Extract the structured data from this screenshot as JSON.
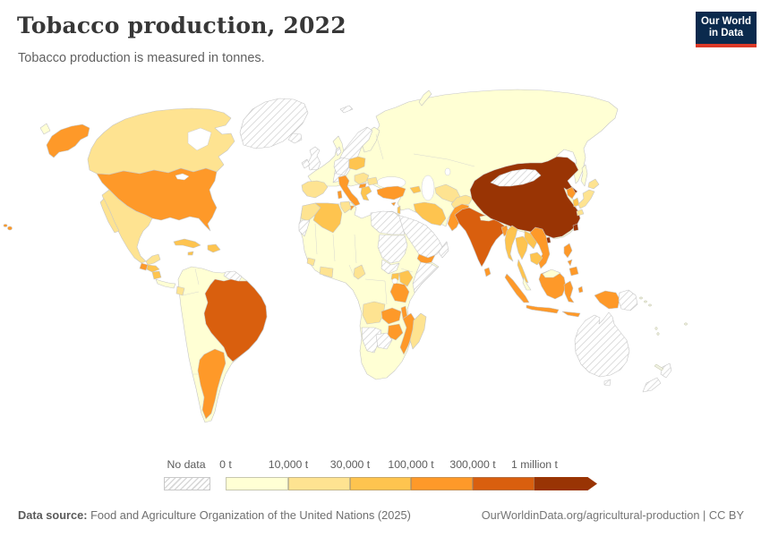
{
  "header": {
    "title": "Tobacco production, 2022",
    "subtitle": "Tobacco production is measured in tonnes.",
    "logo": {
      "line1": "Our World",
      "line2": "in Data",
      "bg": "#0b2a4d",
      "underline": "#dc3927"
    }
  },
  "legend": {
    "no_data_label": "No data",
    "bins": [
      {
        "id": "0-10k",
        "tick": "0 t",
        "color": "#ffffd4"
      },
      {
        "id": "10k-30k",
        "tick": "10,000 t",
        "color": "#fee391"
      },
      {
        "id": "30k-100k",
        "tick": "30,000 t",
        "color": "#fec44f"
      },
      {
        "id": "100k-300k",
        "tick": "100,000 t",
        "color": "#fe9929"
      },
      {
        "id": "300k-1M",
        "tick": "300,000 t",
        "color": "#d95f0e"
      },
      {
        "id": "1M+",
        "tick": "1 million t",
        "color": "#993404"
      }
    ]
  },
  "footer": {
    "source_label": "Data source:",
    "source_text": " Food and Agriculture Organization of the United Nations (2025)",
    "credit": "OurWorldinData.org/agricultural-production | CC BY"
  },
  "chart_data": {
    "type": "choropleth",
    "title": "Tobacco production, 2022",
    "unit": "tonnes",
    "year": 2022,
    "no_data_style": "hatched",
    "bins": [
      "0-10k",
      "10k-30k",
      "30k-100k",
      "100k-300k",
      "300k-1M",
      "1M+"
    ],
    "countries": {
      "China": "1M+",
      "India": "300k-1M",
      "Brazil": "300k-1M",
      "Indonesia": "100k-300k",
      "United States": "100k-300k",
      "Pakistan": "100k-300k",
      "Argentina": "100k-300k",
      "Turkey": "100k-300k",
      "Italy": "100k-300k",
      "North Macedonia": "100k-300k",
      "Bangladesh": "100k-300k",
      "Vietnam": "100k-300k",
      "Philippines": "100k-300k",
      "North Korea": "100k-300k",
      "Zimbabwe": "100k-300k",
      "Zambia": "100k-300k",
      "Tanzania": "100k-300k",
      "Mozambique": "100k-300k",
      "Malawi": "100k-300k",
      "Uganda": "30k-100k",
      "Yemen": "100k-300k",
      "Guatemala": "100k-300k",
      "Sri Lanka": "100k-300k",
      "Cyprus": "100k-300k",
      "Canada": "10k-30k",
      "Mexico": "10k-30k",
      "Spain": "10k-30k",
      "Portugal": "10k-30k",
      "Morocco": "10k-30k",
      "Tunisia": "10k-30k",
      "Angola": "10k-30k",
      "Madagascar": "10k-30k",
      "Cameroon": "10k-30k",
      "Ghana": "10k-30k",
      "Côte d'Ivoire": "10k-30k",
      "Guinea": "10k-30k",
      "Ecuador": "10k-30k",
      "Japan": "10k-30k",
      "Afghanistan": "10k-30k",
      "Turkmenistan": "10k-30k",
      "Uzbekistan": "10k-30k",
      "Bulgaria": "10k-30k",
      "Haiti": "10k-30k",
      "Poland": "30k-100k",
      "Greece": "30k-100k",
      "Algeria": "30k-100k",
      "Iran": "30k-100k",
      "Azerbaijan": "30k-100k",
      "Cuba": "30k-100k",
      "Dominican Republic": "30k-100k",
      "Jamaica": "30k-100k",
      "Honduras": "30k-100k",
      "Nicaragua": "30k-100k",
      "Kenya": "30k-100k",
      "Myanmar": "30k-100k",
      "Thailand": "30k-100k",
      "Laos": "30k-100k",
      "Cambodia": "30k-100k",
      "South Korea": "30k-100k",
      "Lebanon": "30k-100k",
      "Russia": "0-10k",
      "Kazakhstan": "0-10k",
      "France": "0-10k",
      "Ukraine": "0-10k",
      "Romania": "0-10k",
      "Finland": "0-10k",
      "Libya": "0-10k",
      "Colombia": "0-10k",
      "Venezuela": "0-10k",
      "Peru": "0-10k",
      "Bolivia": "0-10k",
      "Paraguay": "0-10k",
      "Chile": "0-10k",
      "Uruguay": "0-10k",
      "South Africa": "0-10k",
      "Ethiopia": "0-10k",
      "Nigeria": "0-10k",
      "Mali": "0-10k",
      "Niger": "0-10k",
      "Chad": "0-10k",
      "Mauritania": "0-10k",
      "DR Congo": "0-10k",
      "Malaysia": "0-10k",
      "Nepal": "0-10k",
      "Iraq": "0-10k",
      "Panama": "0-10k",
      "Greenland": "no-data",
      "Iceland": "no-data",
      "United Kingdom": "no-data",
      "Ireland": "no-data",
      "Norway": "no-data",
      "Sweden": "no-data",
      "Denmark": "no-data",
      "Germany": "no-data",
      "Mongolia": "no-data",
      "Saudi Arabia": "no-data",
      "Oman": "no-data",
      "Egypt": "no-data",
      "Sudan": "no-data",
      "South Sudan": "no-data",
      "Somalia": "no-data",
      "Western Sahara": "no-data",
      "Namibia": "no-data",
      "Botswana": "no-data",
      "Australia": "no-data",
      "New Zealand": "no-data",
      "Papua New Guinea": "no-data",
      "Guyana": "no-data",
      "Suriname": "no-data",
      "Svalbard": "no-data"
    }
  }
}
